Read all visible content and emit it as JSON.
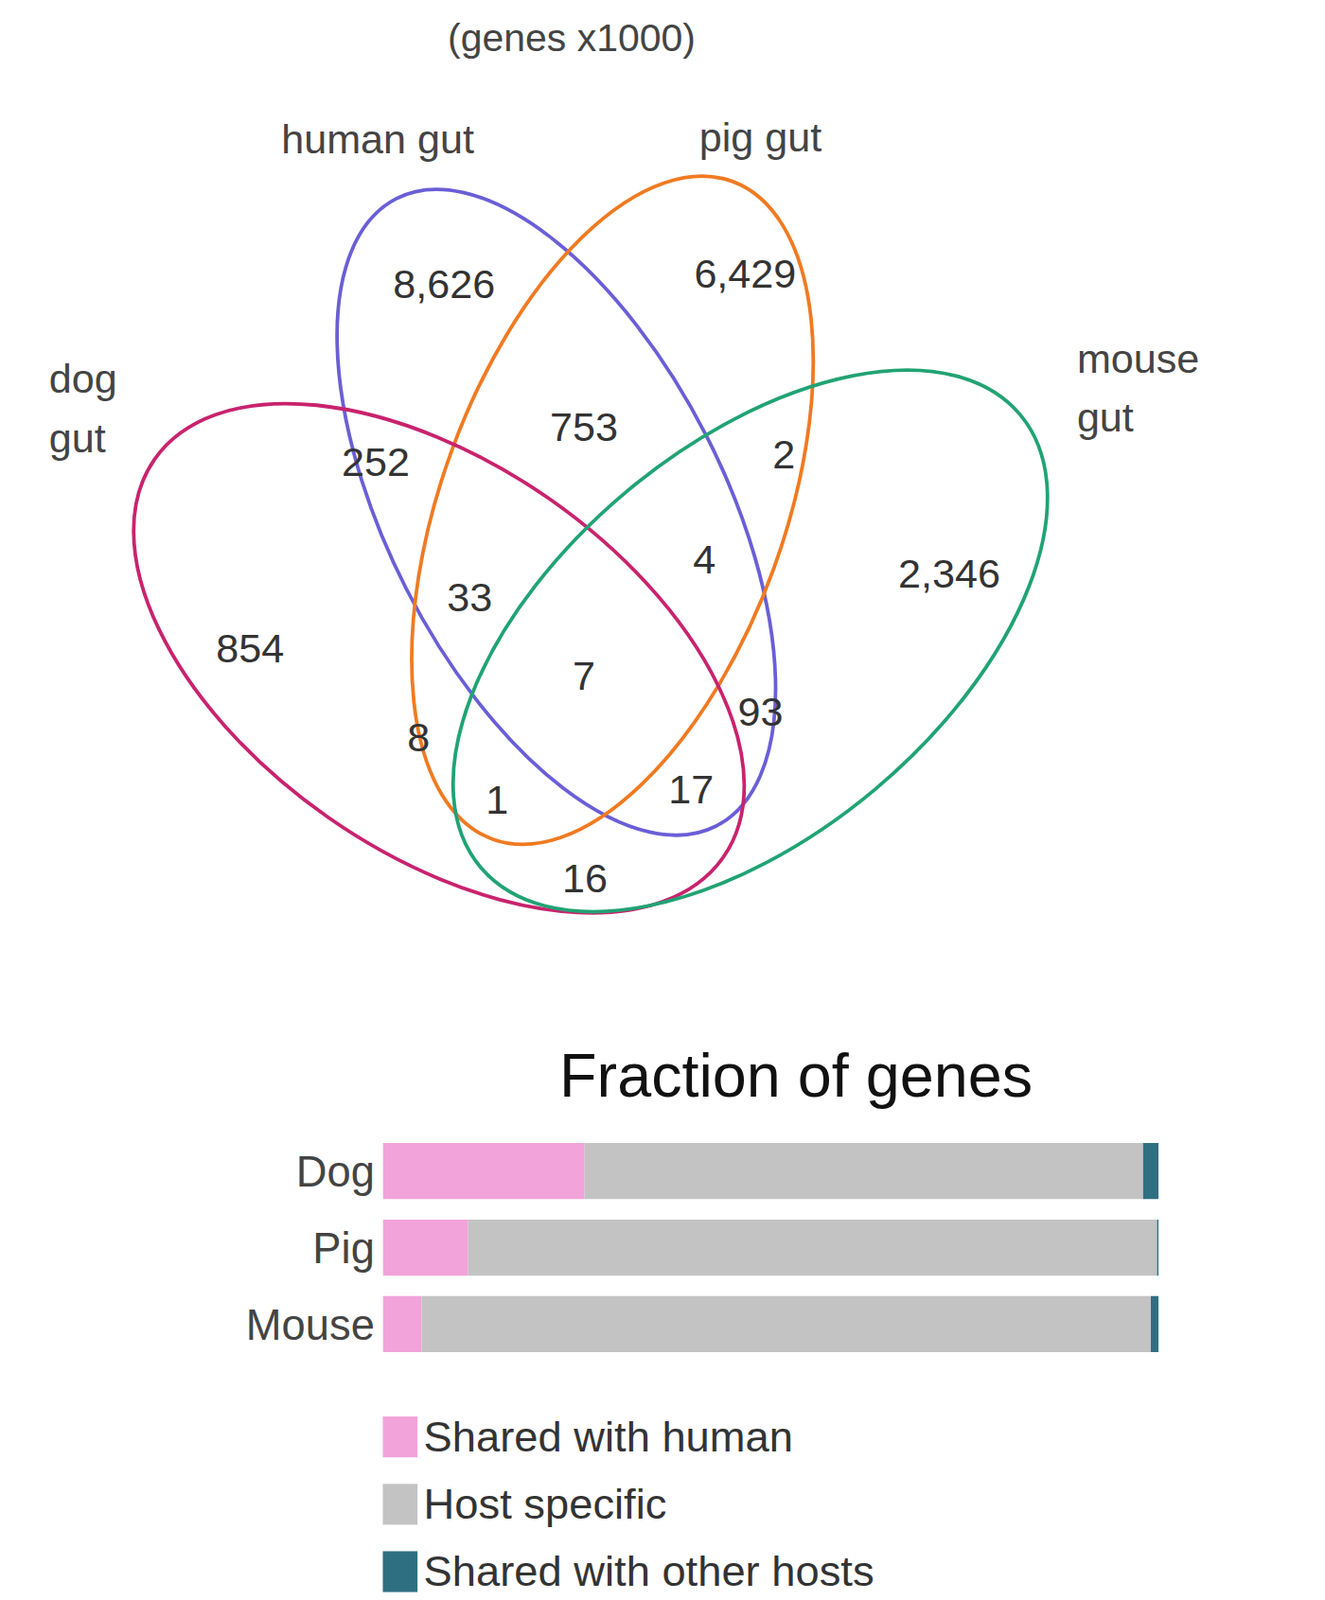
{
  "venn": {
    "title": "(genes x1000)",
    "sets": [
      {
        "name": "human gut",
        "color": "#6a5fd6"
      },
      {
        "name": "pig gut",
        "color": "#f07a22"
      },
      {
        "name": "dog gut",
        "color": "#c8236e"
      },
      {
        "name": "mouse gut",
        "color": "#21a374"
      }
    ],
    "regions": [
      {
        "sets": [
          "human gut"
        ],
        "label": "8,626"
      },
      {
        "sets": [
          "pig gut"
        ],
        "label": "6,429"
      },
      {
        "sets": [
          "human gut",
          "pig gut"
        ],
        "label": "753"
      },
      {
        "sets": [
          "human gut",
          "dog gut"
        ],
        "label": "252"
      },
      {
        "sets": [
          "pig gut",
          "mouse gut"
        ],
        "label": "2"
      },
      {
        "sets": [
          "human gut",
          "pig gut",
          "mouse gut"
        ],
        "label": "4"
      },
      {
        "sets": [
          "mouse gut"
        ],
        "label": "2,346"
      },
      {
        "sets": [
          "human gut",
          "pig gut",
          "dog gut"
        ],
        "label": "33"
      },
      {
        "sets": [
          "dog gut"
        ],
        "label": "854"
      },
      {
        "sets": [
          "human gut",
          "pig gut",
          "dog gut",
          "mouse gut"
        ],
        "label": "7"
      },
      {
        "sets": [
          "human gut",
          "mouse gut"
        ],
        "label": "93"
      },
      {
        "sets": [
          "pig gut",
          "dog gut"
        ],
        "label": "8"
      },
      {
        "sets": [
          "pig gut",
          "dog gut",
          "mouse gut"
        ],
        "label": "1"
      },
      {
        "sets": [
          "human gut",
          "dog gut",
          "mouse gut"
        ],
        "label": "17"
      },
      {
        "sets": [
          "dog gut",
          "mouse gut"
        ],
        "label": "16"
      }
    ]
  },
  "chart_data": {
    "type": "bar",
    "title": "Fraction of genes",
    "orientation": "horizontal",
    "stacked": true,
    "tick_labels": "y",
    "categories": [
      "Dog",
      "Pig",
      "Mouse"
    ],
    "xlim": [
      0,
      1
    ],
    "series": [
      {
        "name": "Shared with human",
        "color": "#f2a3da",
        "values": [
          0.26,
          0.11,
          0.05
        ]
      },
      {
        "name": "Host specific",
        "color": "#c3c3c3",
        "values": [
          0.72,
          0.888,
          0.94
        ]
      },
      {
        "name": "Shared with other hosts",
        "color": "#2f6f82",
        "values": [
          0.02,
          0.002,
          0.01
        ]
      }
    ]
  }
}
